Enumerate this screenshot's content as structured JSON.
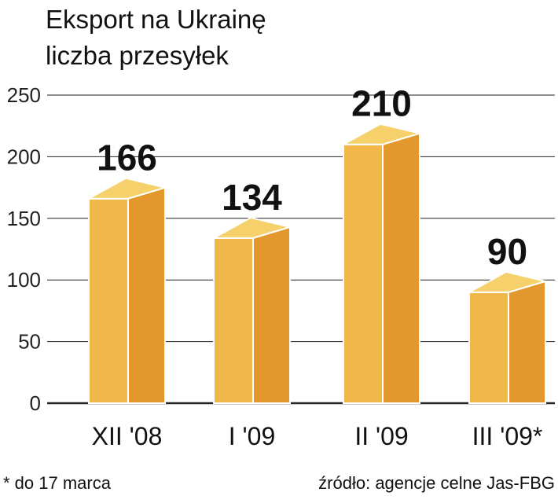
{
  "chart_data": {
    "type": "bar",
    "title": "Eksport na Ukrainę",
    "subtitle": "liczba przesyłek",
    "categories": [
      "XII '08",
      "I '09",
      "II '09",
      "III '09*"
    ],
    "values": [
      166,
      134,
      210,
      90
    ],
    "value_labels": [
      "166",
      "134",
      "210",
      "90"
    ],
    "ylim": [
      0,
      250
    ],
    "yticks": [
      0,
      50,
      100,
      150,
      200,
      250
    ],
    "ytick_labels": [
      "0",
      "50",
      "100",
      "150",
      "200",
      "250"
    ],
    "grid": true,
    "style": "3d-bar",
    "colors": {
      "front": "#F0B84A",
      "side": "#E2982C",
      "top": "#F6D06A",
      "edge": "#ffffff",
      "grid": "#222222"
    }
  },
  "footnote": "* do 17 marca",
  "source": "źródło: agencje celne Jas-FBG"
}
